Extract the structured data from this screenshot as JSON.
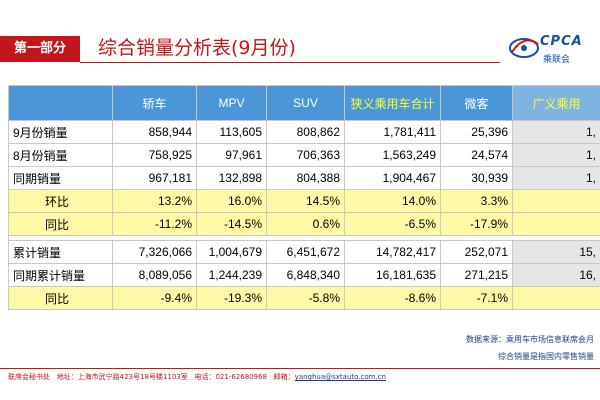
{
  "header": {
    "section_tag": "第一部分",
    "title": "综合销量分析表(9月份)",
    "logo_text": "CPCA",
    "logo_sub": "乘联会"
  },
  "table": {
    "columns": [
      "",
      "轿车",
      "MPV",
      "SUV",
      "狭义乘用车合计",
      "微客",
      "广义乘用"
    ],
    "rows": [
      {
        "label": "9月份销量",
        "values": [
          "858,944",
          "113,605",
          "808,862",
          "1,781,411",
          "25,396",
          "1,"
        ],
        "type": "value"
      },
      {
        "label": "8月份销量",
        "values": [
          "758,925",
          "97,961",
          "706,363",
          "1,563,249",
          "24,574",
          "1,"
        ],
        "type": "value"
      },
      {
        "label": "同期销量",
        "values": [
          "967,181",
          "132,898",
          "804,388",
          "1,904,467",
          "30,939",
          "1,"
        ],
        "type": "value"
      },
      {
        "label": "环比",
        "values": [
          "13.2%",
          "16.0%",
          "14.5%",
          "14.0%",
          "3.3%",
          ""
        ],
        "type": "pct"
      },
      {
        "label": "同比",
        "values": [
          "-11.2%",
          "-14.5%",
          "0.6%",
          "-6.5%",
          "-17.9%",
          ""
        ],
        "type": "pct"
      },
      {
        "label": "累计销量",
        "values": [
          "7,326,066",
          "1,004,679",
          "6,451,672",
          "14,782,417",
          "252,071",
          "15,"
        ],
        "type": "value"
      },
      {
        "label": "同期累计销量",
        "values": [
          "8,089,056",
          "1,244,239",
          "6,848,340",
          "16,181,635",
          "271,215",
          "16,"
        ],
        "type": "value"
      },
      {
        "label": "同比",
        "values": [
          "-9.4%",
          "-19.3%",
          "-5.8%",
          "-8.6%",
          "-7.1%",
          ""
        ],
        "type": "pct"
      }
    ]
  },
  "source_note": "数据来源：乘用车市场信息联席会月",
  "scope_note": "综合销量是指国内零售销量",
  "footer": {
    "org": "联席会秘书处",
    "address": "地址：上海市武宁路423号18号楼1103室",
    "phone": "电话：021-62680968",
    "email_label": "邮箱：",
    "email": "yanghua@sxtauto.com.cn"
  }
}
